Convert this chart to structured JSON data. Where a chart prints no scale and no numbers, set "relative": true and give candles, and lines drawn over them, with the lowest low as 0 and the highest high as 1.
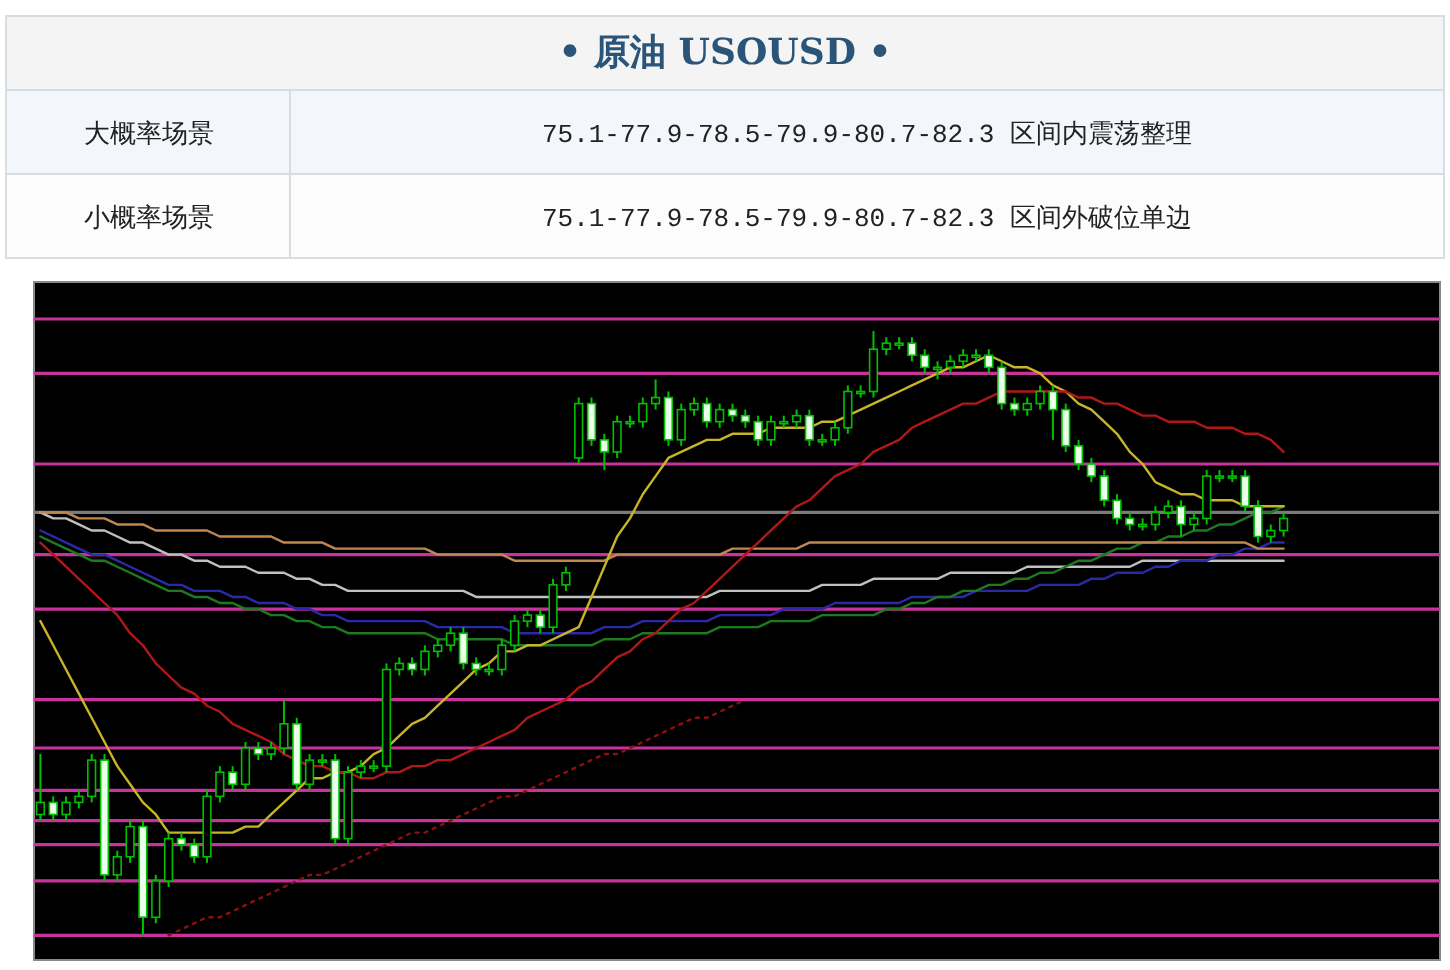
{
  "chart_data": [
    {
      "type": "other",
      "title": "• 原油  USOUSD •",
      "annotations": [
        "大概率场景",
        "75.1-77.9-78.5-79.9-80.7-82.3 区间内震荡整理",
        "小概率场景",
        "75.1-77.9-78.5-79.9-80.7-82.3 区间外破位单边"
      ]
    },
    {
      "type": "candlestick",
      "relative": true,
      "tick_labels": false,
      "categories": [
        null,
        null,
        null,
        null,
        null,
        null,
        null,
        null,
        null,
        null,
        null,
        null,
        null,
        null,
        null,
        null,
        null,
        null,
        null,
        null,
        null,
        null,
        null,
        null,
        null,
        null,
        null,
        null,
        null,
        null,
        null,
        null,
        null,
        null,
        null,
        null,
        null,
        null,
        null,
        null,
        null,
        null,
        null,
        null,
        null,
        null,
        null,
        null,
        null,
        null,
        null,
        null,
        null,
        null,
        null,
        null,
        null,
        null,
        null,
        null,
        null,
        null,
        null,
        null,
        null,
        null,
        null,
        null,
        null,
        null,
        null,
        null,
        null,
        null,
        null,
        null,
        null,
        null,
        null,
        null,
        null,
        null,
        null,
        null,
        null,
        null,
        null,
        null,
        null,
        null,
        null,
        null,
        null,
        null,
        null,
        null,
        null,
        null
      ],
      "ohlc": [
        [
          0.2,
          0.3,
          0.19,
          0.22
        ],
        [
          0.22,
          0.23,
          0.19,
          0.2
        ],
        [
          0.2,
          0.23,
          0.19,
          0.22
        ],
        [
          0.22,
          0.24,
          0.21,
          0.23
        ],
        [
          0.23,
          0.3,
          0.22,
          0.29
        ],
        [
          0.29,
          0.3,
          0.09,
          0.1
        ],
        [
          0.1,
          0.14,
          0.09,
          0.13
        ],
        [
          0.13,
          0.19,
          0.12,
          0.18
        ],
        [
          0.18,
          0.19,
          0,
          0.03
        ],
        [
          0.03,
          0.1,
          0.02,
          0.09
        ],
        [
          0.09,
          0.17,
          0.08,
          0.16
        ],
        [
          0.16,
          0.17,
          0.14,
          0.15
        ],
        [
          0.15,
          0.16,
          0.12,
          0.13
        ],
        [
          0.13,
          0.24,
          0.12,
          0.23
        ],
        [
          0.23,
          0.28,
          0.22,
          0.27
        ],
        [
          0.27,
          0.28,
          0.24,
          0.25
        ],
        [
          0.25,
          0.32,
          0.24,
          0.31
        ],
        [
          0.31,
          0.32,
          0.29,
          0.3
        ],
        [
          0.3,
          0.32,
          0.29,
          0.31
        ],
        [
          0.31,
          0.39,
          0.3,
          0.35
        ],
        [
          0.35,
          0.36,
          0.24,
          0.25
        ],
        [
          0.25,
          0.3,
          0.24,
          0.29
        ],
        [
          0.29,
          0.3,
          0.28,
          0.29
        ],
        [
          0.29,
          0.3,
          0.15,
          0.16
        ],
        [
          0.16,
          0.28,
          0.15,
          0.27
        ],
        [
          0.27,
          0.29,
          0.26,
          0.28
        ],
        [
          0.28,
          0.29,
          0.27,
          0.28
        ],
        [
          0.28,
          0.45,
          0.27,
          0.44
        ],
        [
          0.44,
          0.46,
          0.43,
          0.45
        ],
        [
          0.45,
          0.46,
          0.43,
          0.44
        ],
        [
          0.44,
          0.48,
          0.43,
          0.47
        ],
        [
          0.47,
          0.49,
          0.46,
          0.48
        ],
        [
          0.48,
          0.51,
          0.47,
          0.5
        ],
        [
          0.5,
          0.51,
          0.44,
          0.45
        ],
        [
          0.45,
          0.46,
          0.43,
          0.44
        ],
        [
          0.44,
          0.45,
          0.43,
          0.44
        ],
        [
          0.44,
          0.49,
          0.43,
          0.48
        ],
        [
          0.48,
          0.53,
          0.47,
          0.52
        ],
        [
          0.52,
          0.54,
          0.51,
          0.53
        ],
        [
          0.53,
          0.54,
          0.5,
          0.51
        ],
        [
          0.51,
          0.59,
          0.5,
          0.58
        ],
        [
          0.58,
          0.61,
          0.57,
          0.6
        ],
        [
          0.79,
          0.89,
          0.78,
          0.88
        ],
        [
          0.88,
          0.89,
          0.81,
          0.82
        ],
        [
          0.82,
          0.83,
          0.77,
          0.8
        ],
        [
          0.8,
          0.86,
          0.79,
          0.85
        ],
        [
          0.85,
          0.86,
          0.84,
          0.85
        ],
        [
          0.85,
          0.89,
          0.84,
          0.88
        ],
        [
          0.88,
          0.92,
          0.87,
          0.89
        ],
        [
          0.89,
          0.9,
          0.81,
          0.82
        ],
        [
          0.82,
          0.88,
          0.81,
          0.87
        ],
        [
          0.87,
          0.89,
          0.86,
          0.88
        ],
        [
          0.88,
          0.89,
          0.84,
          0.85
        ],
        [
          0.85,
          0.88,
          0.84,
          0.87
        ],
        [
          0.87,
          0.88,
          0.85,
          0.86
        ],
        [
          0.86,
          0.87,
          0.84,
          0.85
        ],
        [
          0.85,
          0.86,
          0.81,
          0.82
        ],
        [
          0.82,
          0.86,
          0.81,
          0.85
        ],
        [
          0.85,
          0.86,
          0.84,
          0.85
        ],
        [
          0.85,
          0.87,
          0.84,
          0.86
        ],
        [
          0.86,
          0.87,
          0.81,
          0.82
        ],
        [
          0.82,
          0.83,
          0.81,
          0.82
        ],
        [
          0.82,
          0.85,
          0.81,
          0.84
        ],
        [
          0.84,
          0.91,
          0.83,
          0.9
        ],
        [
          0.9,
          0.91,
          0.89,
          0.9
        ],
        [
          0.9,
          1,
          0.89,
          0.97
        ],
        [
          0.97,
          0.99,
          0.96,
          0.98
        ],
        [
          0.98,
          0.99,
          0.97,
          0.98
        ],
        [
          0.98,
          0.99,
          0.95,
          0.96
        ],
        [
          0.96,
          0.97,
          0.93,
          0.94
        ],
        [
          0.94,
          0.95,
          0.92,
          0.94
        ],
        [
          0.94,
          0.96,
          0.93,
          0.95
        ],
        [
          0.95,
          0.97,
          0.94,
          0.96
        ],
        [
          0.96,
          0.97,
          0.95,
          0.96
        ],
        [
          0.96,
          0.97,
          0.93,
          0.94
        ],
        [
          0.94,
          0.95,
          0.87,
          0.88
        ],
        [
          0.88,
          0.89,
          0.86,
          0.87
        ],
        [
          0.87,
          0.89,
          0.86,
          0.88
        ],
        [
          0.88,
          0.91,
          0.87,
          0.9
        ],
        [
          0.9,
          0.91,
          0.82,
          0.87
        ],
        [
          0.87,
          0.88,
          0.8,
          0.81
        ],
        [
          0.81,
          0.82,
          0.77,
          0.78
        ],
        [
          0.78,
          0.79,
          0.75,
          0.76
        ],
        [
          0.76,
          0.77,
          0.71,
          0.72
        ],
        [
          0.72,
          0.73,
          0.68,
          0.69
        ],
        [
          0.69,
          0.7,
          0.67,
          0.68
        ],
        [
          0.68,
          0.69,
          0.67,
          0.68
        ],
        [
          0.68,
          0.71,
          0.67,
          0.7
        ],
        [
          0.7,
          0.72,
          0.69,
          0.71
        ],
        [
          0.71,
          0.72,
          0.66,
          0.68
        ],
        [
          0.68,
          0.7,
          0.67,
          0.69
        ],
        [
          0.69,
          0.77,
          0.68,
          0.76
        ],
        [
          0.76,
          0.77,
          0.75,
          0.76
        ],
        [
          0.76,
          0.77,
          0.75,
          0.76
        ],
        [
          0.76,
          0.77,
          0.7,
          0.71
        ],
        [
          0.71,
          0.72,
          0.65,
          0.66
        ],
        [
          0.66,
          0.68,
          0.65,
          0.67
        ],
        [
          0.67,
          0.7,
          0.66,
          0.69
        ]
      ],
      "series": [
        {
          "type": "line",
          "color": "#c0c0c0",
          "values": [
            0.7,
            0.69,
            0.69,
            0.68,
            0.67,
            0.67,
            0.66,
            0.65,
            0.65,
            0.64,
            0.63,
            0.63,
            0.62,
            0.62,
            0.61,
            0.61,
            0.61,
            0.6,
            0.6,
            0.6,
            0.59,
            0.59,
            0.58,
            0.58,
            0.57,
            0.57,
            0.57,
            0.57,
            0.57,
            0.57,
            0.57,
            0.57,
            0.57,
            0.57,
            0.56,
            0.56,
            0.56,
            0.56,
            0.56,
            0.56,
            0.56,
            0.56,
            0.56,
            0.56,
            0.56,
            0.56,
            0.56,
            0.56,
            0.56,
            0.56,
            0.56,
            0.56,
            0.56,
            0.57,
            0.57,
            0.57,
            0.57,
            0.57,
            0.57,
            0.57,
            0.57,
            0.58,
            0.58,
            0.58,
            0.58,
            0.59,
            0.59,
            0.59,
            0.59,
            0.59,
            0.59,
            0.6,
            0.6,
            0.6,
            0.6,
            0.6,
            0.6,
            0.61,
            0.61,
            0.61,
            0.61,
            0.61,
            0.61,
            0.61,
            0.61,
            0.61,
            0.62,
            0.62,
            0.62,
            0.62,
            0.62,
            0.62,
            0.62,
            0.62,
            0.62,
            0.62,
            0.62,
            0.62
          ]
        },
        {
          "type": "line",
          "color": "#2a2aa8",
          "values": [
            0.67,
            0.66,
            0.65,
            0.64,
            0.63,
            0.63,
            0.62,
            0.61,
            0.6,
            0.59,
            0.58,
            0.58,
            0.57,
            0.57,
            0.57,
            0.56,
            0.56,
            0.55,
            0.55,
            0.55,
            0.54,
            0.54,
            0.53,
            0.53,
            0.52,
            0.52,
            0.52,
            0.52,
            0.52,
            0.52,
            0.52,
            0.51,
            0.51,
            0.51,
            0.51,
            0.51,
            0.51,
            0.5,
            0.5,
            0.5,
            0.5,
            0.5,
            0.5,
            0.5,
            0.51,
            0.51,
            0.51,
            0.52,
            0.52,
            0.52,
            0.52,
            0.52,
            0.52,
            0.53,
            0.53,
            0.53,
            0.53,
            0.53,
            0.54,
            0.54,
            0.54,
            0.54,
            0.55,
            0.55,
            0.55,
            0.55,
            0.55,
            0.55,
            0.56,
            0.56,
            0.56,
            0.56,
            0.56,
            0.57,
            0.57,
            0.57,
            0.57,
            0.57,
            0.58,
            0.58,
            0.58,
            0.58,
            0.59,
            0.59,
            0.6,
            0.6,
            0.6,
            0.61,
            0.61,
            0.62,
            0.62,
            0.62,
            0.63,
            0.63,
            0.64,
            0.64,
            0.65,
            0.65
          ]
        },
        {
          "type": "line",
          "color": "#1e7a1e",
          "values": [
            0.66,
            0.65,
            0.64,
            0.63,
            0.62,
            0.62,
            0.61,
            0.6,
            0.59,
            0.58,
            0.57,
            0.57,
            0.56,
            0.56,
            0.55,
            0.55,
            0.54,
            0.54,
            0.53,
            0.53,
            0.52,
            0.52,
            0.51,
            0.51,
            0.5,
            0.5,
            0.5,
            0.5,
            0.5,
            0.5,
            0.5,
            0.49,
            0.49,
            0.49,
            0.49,
            0.49,
            0.49,
            0.48,
            0.48,
            0.48,
            0.48,
            0.48,
            0.48,
            0.48,
            0.49,
            0.49,
            0.49,
            0.5,
            0.5,
            0.5,
            0.5,
            0.5,
            0.5,
            0.51,
            0.51,
            0.51,
            0.51,
            0.52,
            0.52,
            0.52,
            0.52,
            0.53,
            0.53,
            0.53,
            0.53,
            0.53,
            0.54,
            0.54,
            0.55,
            0.55,
            0.56,
            0.56,
            0.57,
            0.57,
            0.58,
            0.58,
            0.59,
            0.59,
            0.6,
            0.6,
            0.61,
            0.62,
            0.62,
            0.63,
            0.64,
            0.64,
            0.65,
            0.65,
            0.66,
            0.66,
            0.67,
            0.67,
            0.68,
            0.68,
            0.69,
            0.7,
            0.7,
            0.71
          ]
        },
        {
          "type": "line",
          "color": "#c08850",
          "values": [
            0.7,
            0.7,
            0.7,
            0.69,
            0.69,
            0.69,
            0.68,
            0.68,
            0.68,
            0.67,
            0.67,
            0.67,
            0.67,
            0.67,
            0.66,
            0.66,
            0.66,
            0.66,
            0.66,
            0.65,
            0.65,
            0.65,
            0.65,
            0.64,
            0.64,
            0.64,
            0.64,
            0.64,
            0.64,
            0.64,
            0.64,
            0.63,
            0.63,
            0.63,
            0.63,
            0.63,
            0.63,
            0.62,
            0.62,
            0.62,
            0.62,
            0.62,
            0.62,
            0.62,
            0.62,
            0.63,
            0.63,
            0.63,
            0.63,
            0.63,
            0.63,
            0.63,
            0.63,
            0.63,
            0.64,
            0.64,
            0.64,
            0.64,
            0.64,
            0.64,
            0.65,
            0.65,
            0.65,
            0.65,
            0.65,
            0.65,
            0.65,
            0.65,
            0.65,
            0.65,
            0.65,
            0.65,
            0.65,
            0.65,
            0.65,
            0.65,
            0.65,
            0.65,
            0.65,
            0.65,
            0.65,
            0.65,
            0.65,
            0.65,
            0.65,
            0.65,
            0.65,
            0.65,
            0.65,
            0.65,
            0.65,
            0.65,
            0.65,
            0.65,
            0.65,
            0.64,
            0.64,
            0.64
          ]
        },
        {
          "type": "line",
          "color": "#c8b428",
          "values": [
            0.52,
            0.48,
            0.44,
            0.4,
            0.36,
            0.32,
            0.28,
            0.25,
            0.22,
            0.2,
            0.17,
            0.17,
            0.17,
            0.17,
            0.17,
            0.17,
            0.18,
            0.18,
            0.2,
            0.22,
            0.24,
            0.26,
            0.26,
            0.27,
            0.27,
            0.28,
            0.3,
            0.31,
            0.33,
            0.35,
            0.36,
            0.38,
            0.4,
            0.42,
            0.44,
            0.45,
            0.47,
            0.47,
            0.48,
            0.48,
            0.49,
            0.5,
            0.51,
            0.56,
            0.61,
            0.66,
            0.69,
            0.73,
            0.76,
            0.79,
            0.8,
            0.81,
            0.82,
            0.82,
            0.83,
            0.83,
            0.83,
            0.84,
            0.84,
            0.84,
            0.84,
            0.85,
            0.85,
            0.86,
            0.87,
            0.88,
            0.89,
            0.9,
            0.91,
            0.92,
            0.93,
            0.94,
            0.94,
            0.95,
            0.96,
            0.95,
            0.94,
            0.94,
            0.93,
            0.91,
            0.9,
            0.88,
            0.87,
            0.85,
            0.83,
            0.8,
            0.78,
            0.75,
            0.74,
            0.73,
            0.73,
            0.72,
            0.72,
            0.72,
            0.71,
            0.71,
            0.71,
            0.71
          ]
        },
        {
          "type": "line",
          "color": "#b01818",
          "values": [
            0.65,
            0.63,
            0.61,
            0.59,
            0.57,
            0.55,
            0.53,
            0.5,
            0.48,
            0.45,
            0.43,
            0.41,
            0.4,
            0.38,
            0.37,
            0.35,
            0.34,
            0.33,
            0.32,
            0.3,
            0.29,
            0.28,
            0.28,
            0.27,
            0.27,
            0.26,
            0.26,
            0.27,
            0.27,
            0.28,
            0.28,
            0.29,
            0.29,
            0.3,
            0.31,
            0.32,
            0.33,
            0.34,
            0.36,
            0.37,
            0.38,
            0.39,
            0.41,
            0.42,
            0.44,
            0.46,
            0.47,
            0.49,
            0.5,
            0.52,
            0.54,
            0.55,
            0.57,
            0.59,
            0.61,
            0.63,
            0.65,
            0.67,
            0.69,
            0.71,
            0.72,
            0.74,
            0.76,
            0.77,
            0.78,
            0.8,
            0.81,
            0.82,
            0.84,
            0.85,
            0.86,
            0.87,
            0.88,
            0.88,
            0.89,
            0.9,
            0.9,
            0.9,
            0.9,
            0.9,
            0.9,
            0.89,
            0.89,
            0.88,
            0.88,
            0.87,
            0.86,
            0.86,
            0.85,
            0.85,
            0.85,
            0.84,
            0.84,
            0.84,
            0.83,
            0.83,
            0.82,
            0.8
          ]
        },
        {
          "type": "line",
          "color": "#8b1010",
          "line_style": "dotted",
          "values": [
            null,
            null,
            null,
            null,
            null,
            null,
            null,
            null,
            null,
            null,
            0.0,
            0.01,
            0.02,
            0.03,
            0.03,
            0.04,
            0.05,
            0.06,
            0.07,
            0.08,
            0.09,
            0.1,
            0.1,
            0.11,
            0.12,
            0.13,
            0.14,
            0.15,
            0.16,
            0.17,
            0.17,
            0.18,
            0.19,
            0.2,
            0.21,
            0.22,
            0.23,
            0.23,
            0.24,
            0.25,
            0.26,
            0.27,
            0.28,
            0.29,
            0.3,
            0.3,
            0.31,
            0.32,
            0.33,
            0.34,
            0.35,
            0.36,
            0.36,
            0.37,
            0.38,
            0.39,
            null,
            null,
            null,
            null,
            null,
            null,
            null,
            null,
            null,
            null,
            null,
            null,
            null,
            null,
            null,
            null,
            null,
            null,
            null,
            null,
            null,
            null,
            null,
            null,
            null,
            null,
            null,
            null,
            null,
            null,
            null,
            null,
            null,
            null,
            null,
            null,
            null,
            null,
            null,
            null,
            null,
            null
          ]
        }
      ],
      "ref_lines": [
        {
          "axis": "y",
          "value": 1.02,
          "color": "#c8329b"
        },
        {
          "axis": "y",
          "value": 0.93,
          "color": "#c8329b"
        },
        {
          "axis": "y",
          "value": 0.78,
          "color": "#c8329b"
        },
        {
          "axis": "y",
          "value": 0.7,
          "color": "#7a7a7a"
        },
        {
          "axis": "y",
          "value": 0.63,
          "color": "#c8329b"
        },
        {
          "axis": "y",
          "value": 0.54,
          "color": "#c8329b"
        },
        {
          "axis": "y",
          "value": 0.39,
          "color": "#c8329b"
        },
        {
          "axis": "y",
          "value": 0.31,
          "color": "#c8329b"
        },
        {
          "axis": "y",
          "value": 0.24,
          "color": "#c8329b"
        },
        {
          "axis": "y",
          "value": 0.19,
          "color": "#c8329b"
        },
        {
          "axis": "y",
          "value": 0.15,
          "color": "#c8329b"
        },
        {
          "axis": "y",
          "value": 0.09,
          "color": "#c8329b"
        },
        {
          "axis": "y",
          "value": 0.0,
          "color": "#c8329b"
        }
      ]
    }
  ]
}
